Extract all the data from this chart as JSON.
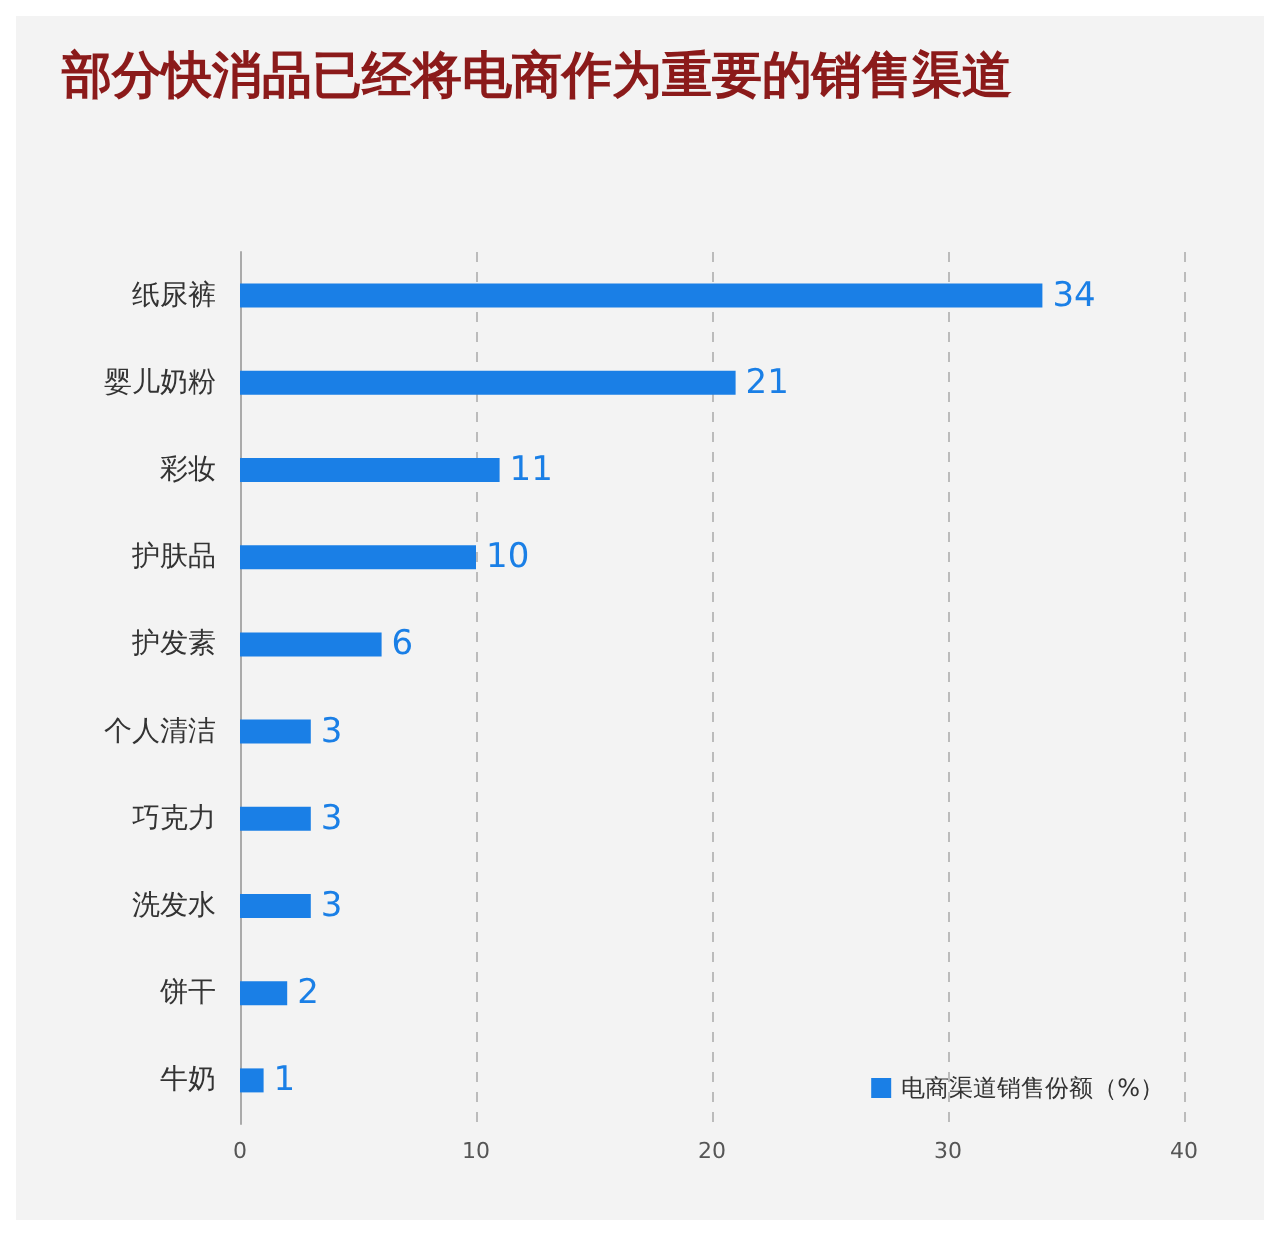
{
  "chart_data": {
    "type": "bar",
    "orientation": "horizontal",
    "title": "部分快消品已经将电商作为重要的销售渠道",
    "categories": [
      "纸尿裤",
      "婴儿奶粉",
      "彩妆",
      "护肤品",
      "护发素",
      "个人清洁",
      "巧克力",
      "洗发水",
      "饼干",
      "牛奶"
    ],
    "series": [
      {
        "name": "电商渠道销售份额（%）",
        "color": "#1a7fe6",
        "values": [
          34,
          21,
          11,
          10,
          6,
          3,
          3,
          3,
          2,
          1
        ]
      }
    ],
    "xlim": [
      0,
      40
    ],
    "xticks": [
      0,
      10,
      20,
      30,
      40
    ],
    "grid": "x",
    "legend": "bottom right",
    "data_labels": true
  }
}
